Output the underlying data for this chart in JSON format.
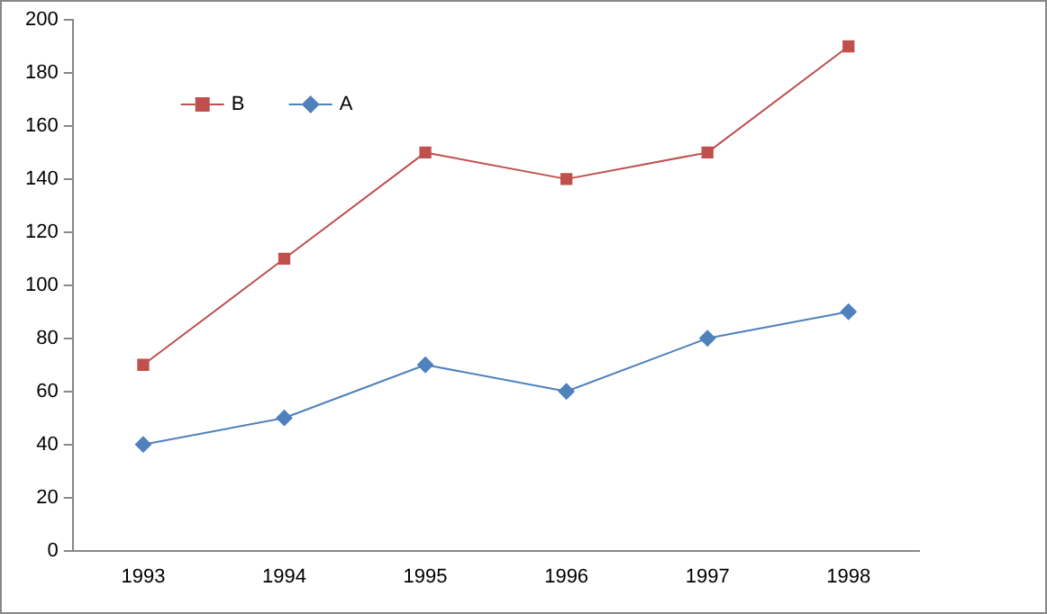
{
  "chart_data": {
    "type": "line",
    "categories": [
      "1993",
      "1994",
      "1995",
      "1996",
      "1997",
      "1998"
    ],
    "series": [
      {
        "name": "B",
        "color": "#c0504d",
        "values": [
          70,
          110,
          150,
          140,
          150,
          190
        ],
        "marker": "square"
      },
      {
        "name": "A",
        "color": "#4f81bd",
        "values": [
          40,
          50,
          70,
          60,
          80,
          90
        ],
        "marker": "diamond"
      }
    ],
    "ylim": [
      0,
      200
    ],
    "yticks": [
      0,
      20,
      40,
      60,
      80,
      100,
      120,
      140,
      160,
      180,
      200
    ],
    "grid": false,
    "legend": "top left"
  }
}
